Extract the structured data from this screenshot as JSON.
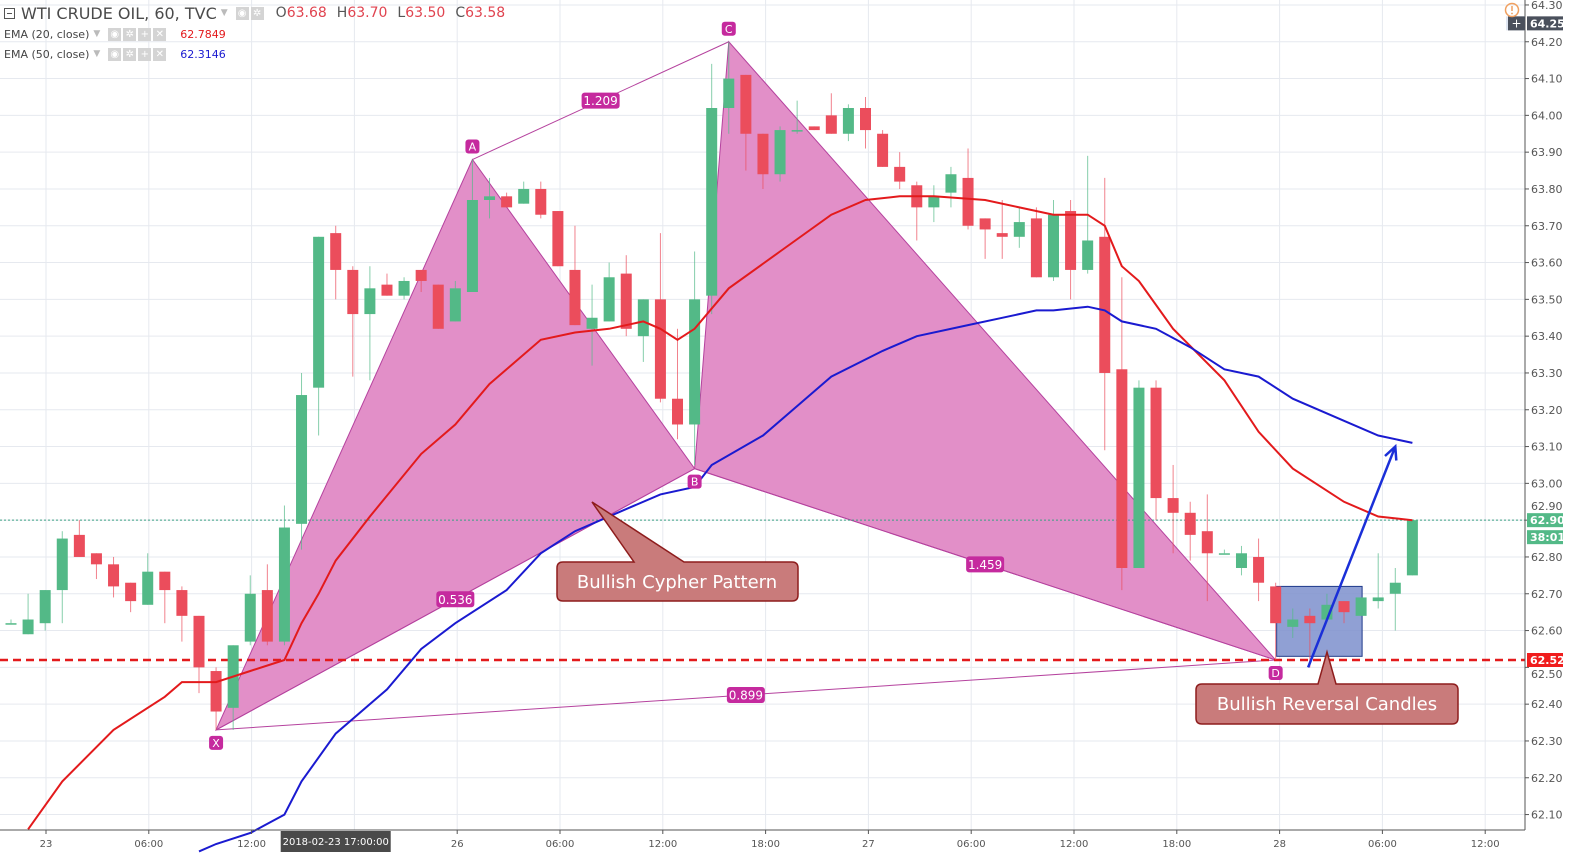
{
  "header": {
    "symbol": "WTI CRUDE OIL, 60, TVC",
    "o_label": "O",
    "o_value": "63.68",
    "h_label": "H",
    "h_value": "63.70",
    "l_label": "L",
    "l_value": "63.50",
    "c_label": "C",
    "c_value": "63.58"
  },
  "indicators": [
    {
      "name": "EMA (20, close)",
      "value": "62.7849",
      "color": "#e31a1c"
    },
    {
      "name": "EMA (50, close)",
      "value": "62.3146",
      "color": "#1a1ad0"
    }
  ],
  "colors": {
    "up": "#53b987",
    "down": "#eb4d5c",
    "pattern_fill": "#e28fc8",
    "pattern_line": "#b5429e",
    "ratio_badge": "#c52a9e",
    "callout_fill": "#c97b7b",
    "callout_border": "#8e1d1d",
    "support_line": "#e31a1c",
    "reversal_box": "#7c8fcc",
    "arrow": "#1a2fd8"
  },
  "chart_data": {
    "type": "candlestick",
    "ylim": [
      62.05,
      64.31
    ],
    "grid": true,
    "y_ticks": [
      "62.10",
      "62.20",
      "62.30",
      "62.40",
      "62.50",
      "62.60",
      "62.70",
      "62.80",
      "62.90",
      "63.00",
      "63.10",
      "63.20",
      "63.30",
      "63.40",
      "63.50",
      "63.60",
      "63.70",
      "63.80",
      "63.90",
      "64.00",
      "64.10",
      "64.20",
      "64.30"
    ],
    "x_ticks": [
      "23",
      "06:00",
      "12:00",
      "",
      "26",
      "06:00",
      "12:00",
      "18:00",
      "27",
      "06:00",
      "12:00",
      "18:00",
      "28",
      "06:00",
      "12:00"
    ],
    "crosshair_time": "2018-02-23 17:00:00",
    "crosshair_candle": 19,
    "candles_ohlc": [
      [
        62.62,
        62.63,
        62.62,
        62.62
      ],
      [
        62.59,
        62.7,
        62.59,
        62.63
      ],
      [
        62.62,
        62.71,
        62.6,
        62.71
      ],
      [
        62.71,
        62.87,
        62.62,
        62.85
      ],
      [
        62.86,
        62.9,
        62.8,
        62.8
      ],
      [
        62.81,
        62.81,
        62.74,
        62.78
      ],
      [
        62.78,
        62.8,
        62.69,
        62.72
      ],
      [
        62.73,
        62.73,
        62.65,
        62.68
      ],
      [
        62.67,
        62.81,
        62.67,
        62.76
      ],
      [
        62.76,
        62.76,
        62.62,
        62.71
      ],
      [
        62.71,
        62.72,
        62.57,
        62.64
      ],
      [
        62.64,
        62.64,
        62.43,
        62.5
      ],
      [
        62.49,
        62.5,
        62.33,
        62.38
      ],
      [
        62.39,
        62.56,
        62.33,
        62.56
      ],
      [
        62.57,
        62.75,
        62.56,
        62.7
      ],
      [
        62.71,
        62.78,
        62.56,
        62.57
      ],
      [
        62.57,
        62.94,
        62.56,
        62.88
      ],
      [
        62.89,
        63.3,
        62.82,
        63.24
      ],
      [
        63.26,
        63.67,
        63.13,
        63.67
      ],
      [
        63.68,
        63.7,
        63.5,
        63.58
      ],
      [
        63.58,
        63.59,
        63.29,
        63.46
      ],
      [
        63.46,
        63.59,
        63.28,
        63.53
      ],
      [
        63.54,
        63.57,
        63.51,
        63.51
      ],
      [
        63.51,
        63.56,
        63.5,
        63.55
      ],
      [
        63.58,
        63.58,
        63.52,
        63.55
      ],
      [
        63.54,
        63.54,
        63.42,
        63.42
      ],
      [
        63.44,
        63.55,
        63.44,
        63.53
      ],
      [
        63.52,
        63.88,
        63.52,
        63.77
      ],
      [
        63.77,
        63.83,
        63.72,
        63.78
      ],
      [
        63.78,
        63.79,
        63.75,
        63.75
      ],
      [
        63.76,
        63.82,
        63.76,
        63.8
      ],
      [
        63.8,
        63.82,
        63.72,
        63.73
      ],
      [
        63.74,
        63.74,
        63.59,
        63.59
      ],
      [
        63.58,
        63.7,
        63.43,
        63.43
      ],
      [
        63.42,
        63.54,
        63.32,
        63.45
      ],
      [
        63.44,
        63.6,
        63.44,
        63.56
      ],
      [
        63.57,
        63.62,
        63.4,
        63.42
      ],
      [
        63.4,
        63.5,
        63.33,
        63.5
      ],
      [
        63.5,
        63.68,
        63.22,
        63.23
      ],
      [
        63.23,
        63.42,
        63.12,
        63.16
      ],
      [
        63.16,
        63.63,
        63.05,
        63.5
      ],
      [
        63.51,
        64.14,
        63.46,
        64.02
      ],
      [
        64.02,
        64.2,
        63.95,
        64.1
      ],
      [
        64.11,
        64.11,
        63.85,
        63.95
      ],
      [
        63.95,
        63.95,
        63.8,
        63.84
      ],
      [
        63.84,
        63.97,
        63.82,
        63.96
      ],
      [
        63.96,
        64.04,
        63.95,
        63.96
      ],
      [
        63.97,
        63.97,
        63.96,
        63.96
      ],
      [
        64.0,
        64.06,
        63.95,
        63.95
      ],
      [
        63.95,
        64.03,
        63.93,
        64.02
      ],
      [
        64.02,
        64.05,
        63.91,
        63.96
      ],
      [
        63.95,
        63.96,
        63.86,
        63.86
      ],
      [
        63.86,
        63.9,
        63.8,
        63.82
      ],
      [
        63.81,
        63.82,
        63.66,
        63.75
      ],
      [
        63.75,
        63.81,
        63.71,
        63.78
      ],
      [
        63.79,
        63.86,
        63.75,
        63.84
      ],
      [
        63.83,
        63.91,
        63.69,
        63.7
      ],
      [
        63.72,
        63.72,
        63.61,
        63.69
      ],
      [
        63.68,
        63.77,
        63.61,
        63.67
      ],
      [
        63.67,
        63.75,
        63.64,
        63.71
      ],
      [
        63.72,
        63.75,
        63.56,
        63.56
      ],
      [
        63.56,
        63.77,
        63.55,
        63.73
      ],
      [
        63.74,
        63.77,
        63.5,
        63.58
      ],
      [
        63.58,
        63.89,
        63.57,
        63.66
      ],
      [
        63.67,
        63.83,
        63.09,
        63.3
      ],
      [
        63.31,
        63.56,
        62.71,
        62.77
      ],
      [
        62.77,
        63.28,
        62.77,
        63.26
      ],
      [
        63.26,
        63.28,
        62.9,
        62.96
      ],
      [
        62.96,
        63.05,
        62.81,
        62.92
      ],
      [
        62.92,
        62.95,
        62.79,
        62.86
      ],
      [
        62.87,
        62.97,
        62.68,
        62.81
      ],
      [
        62.81,
        62.82,
        62.81,
        62.81
      ],
      [
        62.77,
        62.83,
        62.75,
        62.81
      ],
      [
        62.8,
        62.85,
        62.68,
        62.73
      ],
      [
        62.72,
        62.73,
        62.52,
        62.62
      ],
      [
        62.61,
        62.66,
        62.58,
        62.63
      ],
      [
        62.64,
        62.66,
        62.5,
        62.62
      ],
      [
        62.63,
        62.7,
        62.63,
        62.67
      ],
      [
        62.68,
        62.68,
        62.62,
        62.65
      ],
      [
        62.64,
        62.69,
        62.64,
        62.69
      ],
      [
        62.68,
        62.81,
        62.66,
        62.69
      ],
      [
        62.7,
        62.77,
        62.6,
        62.73
      ],
      [
        62.75,
        62.9,
        62.75,
        62.9
      ]
    ],
    "series": [
      {
        "name": "EMA (20, close)",
        "color": "#e31a1c",
        "points": [
          [
            1,
            62.06
          ],
          [
            3,
            62.19
          ],
          [
            6,
            62.33
          ],
          [
            9,
            62.42
          ],
          [
            10,
            62.46
          ],
          [
            12,
            62.46
          ],
          [
            14,
            62.49
          ],
          [
            16,
            62.52
          ],
          [
            17,
            62.62
          ],
          [
            18,
            62.7
          ],
          [
            19,
            62.79
          ],
          [
            21,
            62.91
          ],
          [
            24,
            63.08
          ],
          [
            26,
            63.16
          ],
          [
            28,
            63.27
          ],
          [
            31,
            63.39
          ],
          [
            33,
            63.41
          ],
          [
            35,
            63.42
          ],
          [
            37,
            63.44
          ],
          [
            38,
            63.42
          ],
          [
            39,
            63.39
          ],
          [
            40,
            63.42
          ],
          [
            42,
            63.53
          ],
          [
            45,
            63.63
          ],
          [
            48,
            63.73
          ],
          [
            50,
            63.77
          ],
          [
            52,
            63.78
          ],
          [
            54,
            63.78
          ],
          [
            57,
            63.77
          ],
          [
            59,
            63.75
          ],
          [
            61,
            63.73
          ],
          [
            63,
            63.73
          ],
          [
            64,
            63.7
          ],
          [
            65,
            63.59
          ],
          [
            66,
            63.55
          ],
          [
            68,
            63.42
          ],
          [
            71,
            63.28
          ],
          [
            73,
            63.14
          ],
          [
            75,
            63.04
          ],
          [
            78,
            62.95
          ],
          [
            80,
            62.91
          ],
          [
            82,
            62.9
          ]
        ]
      },
      {
        "name": "EMA (50, close)",
        "color": "#1a1ad0",
        "points": [
          [
            11,
            62.0
          ],
          [
            12,
            62.02
          ],
          [
            14,
            62.05
          ],
          [
            16,
            62.1
          ],
          [
            17,
            62.19
          ],
          [
            19,
            62.32
          ],
          [
            22,
            62.44
          ],
          [
            24,
            62.55
          ],
          [
            26,
            62.62
          ],
          [
            29,
            62.71
          ],
          [
            31,
            62.81
          ],
          [
            33,
            62.87
          ],
          [
            36,
            62.93
          ],
          [
            38,
            62.97
          ],
          [
            40,
            62.99
          ],
          [
            41,
            63.05
          ],
          [
            44,
            63.13
          ],
          [
            46,
            63.21
          ],
          [
            48,
            63.29
          ],
          [
            51,
            63.36
          ],
          [
            53,
            63.4
          ],
          [
            56,
            63.43
          ],
          [
            58,
            63.45
          ],
          [
            60,
            63.47
          ],
          [
            61,
            63.47
          ],
          [
            63,
            63.48
          ],
          [
            64,
            63.47
          ],
          [
            65,
            63.44
          ],
          [
            67,
            63.42
          ],
          [
            69,
            63.37
          ],
          [
            71,
            63.31
          ],
          [
            73,
            63.29
          ],
          [
            75,
            63.23
          ],
          [
            78,
            63.17
          ],
          [
            80,
            63.13
          ],
          [
            82,
            63.11
          ]
        ]
      }
    ],
    "pattern": {
      "points": [
        {
          "label": "X",
          "candle": 12,
          "price": 62.33
        },
        {
          "label": "A",
          "candle": 27,
          "price": 63.88
        },
        {
          "label": "B",
          "candle": 40,
          "price": 63.04
        },
        {
          "label": "C",
          "candle": 42,
          "price": 64.2
        },
        {
          "label": "D",
          "candle": 74,
          "price": 62.52
        }
      ],
      "ratios": [
        {
          "value": "1.209",
          "from": "A",
          "to": "C"
        },
        {
          "value": "0.536",
          "from": "X",
          "to": "B"
        },
        {
          "value": "1.459",
          "from": "B",
          "to": "D"
        },
        {
          "value": "0.899",
          "from": "X",
          "to": "D"
        }
      ]
    },
    "annotations": {
      "cypher_callout": "Bullish Cypher Pattern",
      "reversal_callout": "Bullish Reversal Candles",
      "reversal_box": {
        "candle_from": 74,
        "candle_to": 79,
        "price_high": 62.72,
        "price_low": 62.53
      },
      "arrow": {
        "from_candle": 75.9,
        "from_price": 62.5,
        "to_candle": 81,
        "to_price": 63.1
      }
    },
    "support_level": "62.52",
    "last_price": "62.90",
    "countdown": "38:01",
    "crosshair_price": "64.25"
  }
}
